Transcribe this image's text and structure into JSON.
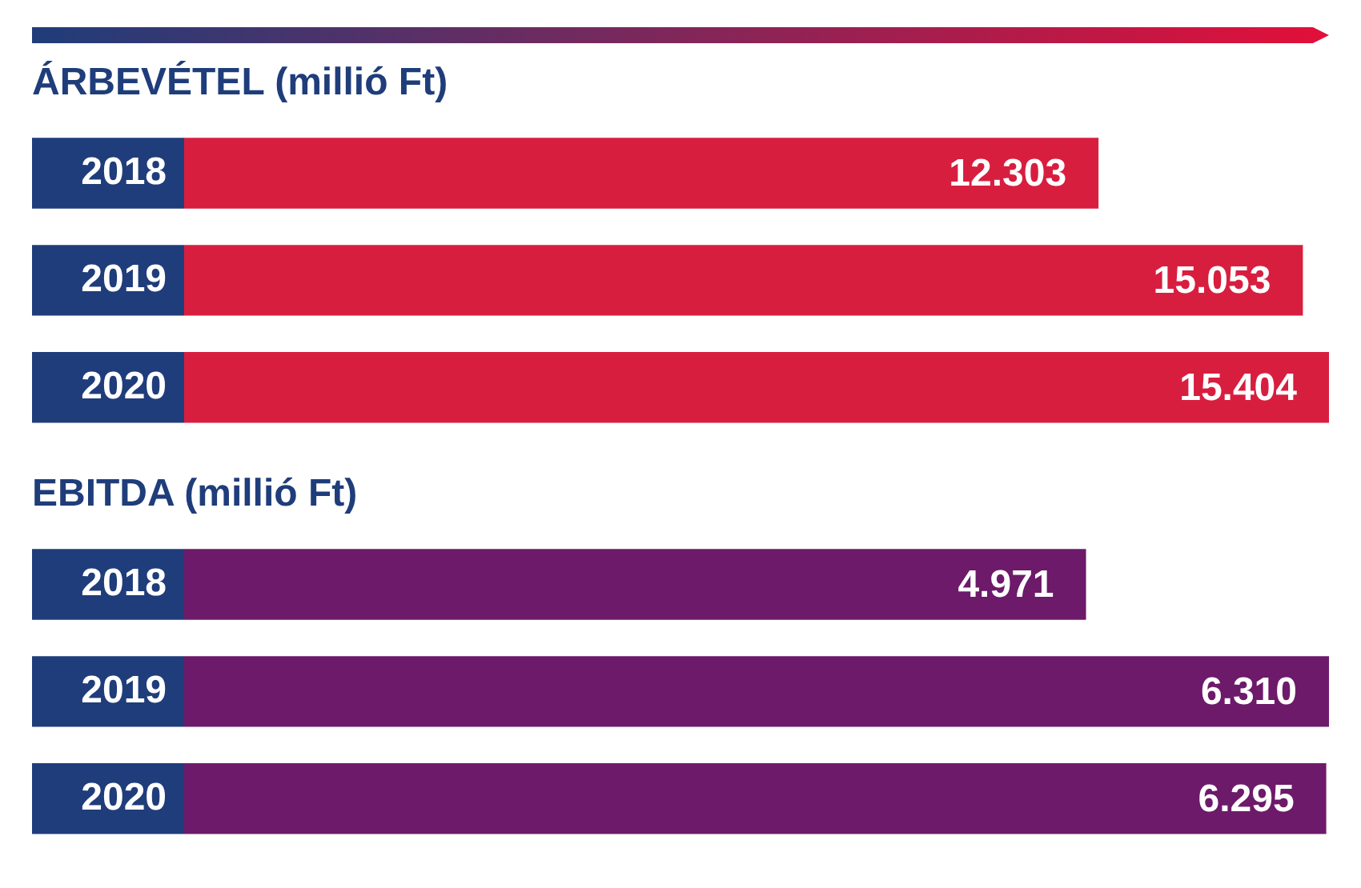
{
  "chart_data": [
    {
      "type": "bar",
      "orientation": "horizontal",
      "title": "ÁRBEVÉTEL (millió Ft)",
      "categories": [
        "2018",
        "2019",
        "2020"
      ],
      "values": [
        12303,
        15053,
        15404
      ],
      "value_labels": [
        "12.303",
        "15.053",
        "15.404"
      ],
      "color": "#d81e3f",
      "tick_labels": "y"
    },
    {
      "type": "bar",
      "orientation": "horizontal",
      "title": "EBITDA (millió Ft)",
      "categories": [
        "2018",
        "2019",
        "2020"
      ],
      "values": [
        4971,
        6310,
        6295
      ],
      "value_labels": [
        "4.971",
        "6.310",
        "6.295"
      ],
      "color": "#6d1a6a",
      "tick_labels": "y"
    }
  ]
}
